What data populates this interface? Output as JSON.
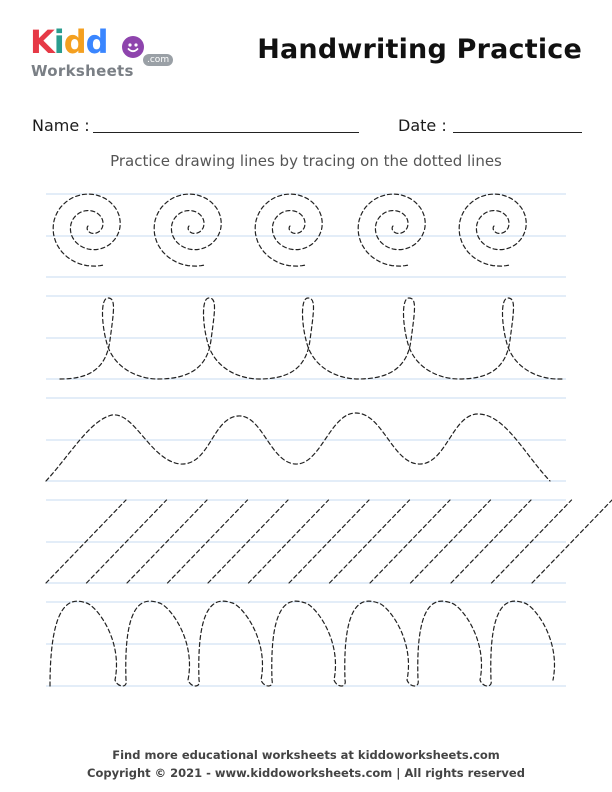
{
  "logo": {
    "brand_letters": [
      {
        "char": "K",
        "color": "#e63946"
      },
      {
        "char": "i",
        "color": "#2a9d8f"
      },
      {
        "char": "d",
        "color": "#f4a020"
      },
      {
        "char": "d",
        "color": "#3a86ff"
      },
      {
        "char": "o",
        "color": "#8e44ad"
      }
    ],
    "sub_text": "Worksheets",
    "domain_tag": ".com"
  },
  "title": "Handwriting Practice",
  "name_label": "Name :",
  "date_label": "Date :",
  "instruction": "Practice drawing lines by tracing on the dotted lines",
  "colors": {
    "guide_line": "#c7dbf0",
    "trace_stroke": "#222222"
  },
  "footer": {
    "line1": "Find more educational worksheets at kiddoworksheets.com",
    "line2": "Copyright © 2021 - www.kiddoworksheets.com  |  All rights reserved"
  }
}
